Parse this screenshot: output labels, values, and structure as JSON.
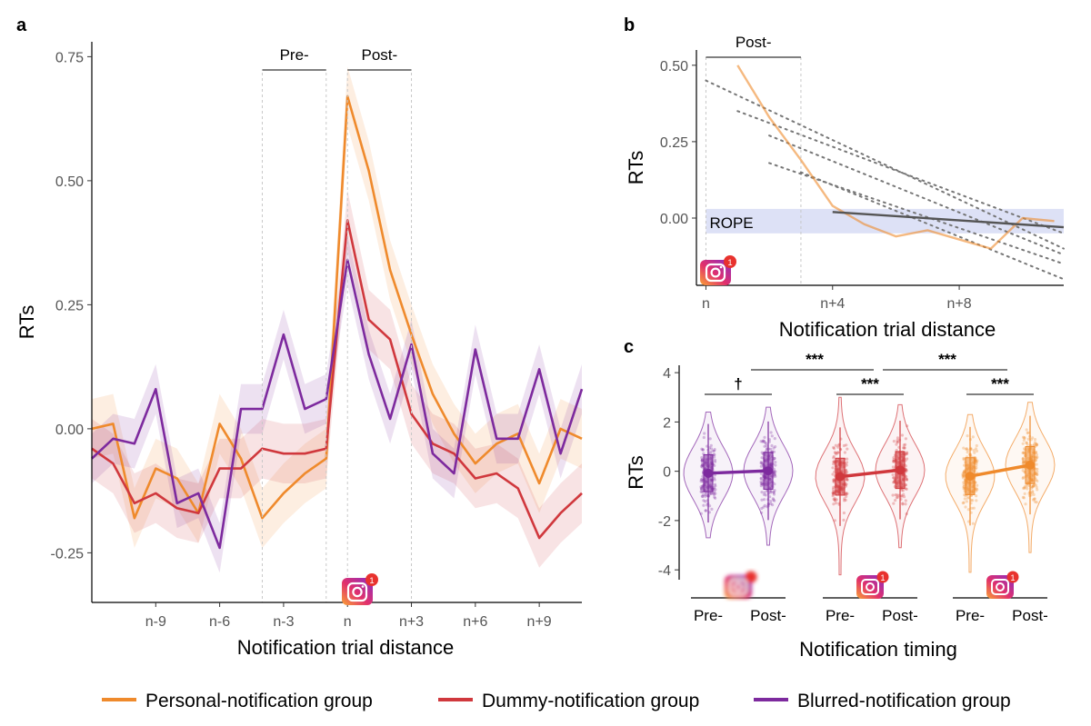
{
  "colors": {
    "personal": "#ef8a2c",
    "dummy": "#d0383d",
    "blurred": "#7d2a9e",
    "rope": "#dde1f6",
    "gray": "#777777",
    "fit": "#555555"
  },
  "legend": {
    "items": [
      {
        "label": "Personal-notification group",
        "color": "#ef8a2c"
      },
      {
        "label": "Dummy-notification group",
        "color": "#d0383d"
      },
      {
        "label": "Blurred-notification group",
        "color": "#7d2a9e"
      }
    ],
    "placement": "bottom"
  },
  "chart_data": [
    {
      "panel": "a",
      "type": "line",
      "ylabel": "RTs",
      "xlabel": "Notification trial distance",
      "xlim": [
        -12,
        11
      ],
      "ylim": [
        -0.35,
        0.78
      ],
      "xticks": [
        -9,
        -6,
        -3,
        0,
        3,
        6,
        9
      ],
      "xtick_labels": [
        "n-9",
        "n-6",
        "n-3",
        "n",
        "n+3",
        "n+6",
        "n+9"
      ],
      "yticks": [
        -0.25,
        0,
        0.25,
        0.5,
        0.75
      ],
      "ytick_labels": [
        "-0.25",
        "0.00",
        "0.25",
        "0.50",
        "0.75"
      ],
      "period_labels": {
        "pre": "Pre-",
        "post": "Post-"
      },
      "pre_window": [
        -4,
        -1
      ],
      "post_window": [
        0,
        3
      ],
      "icon": "instagram-notification-icon",
      "icon_badge": "1",
      "x": [
        -12,
        -11,
        -10,
        -9,
        -8,
        -7,
        -6,
        -5,
        -4,
        -3,
        -2,
        -1,
        0,
        1,
        2,
        3,
        4,
        5,
        6,
        7,
        8,
        9,
        10,
        11
      ],
      "series": [
        {
          "name": "Personal-notification group",
          "color": "#ef8a2c",
          "values": [
            0.0,
            0.01,
            -0.18,
            -0.08,
            -0.1,
            -0.17,
            0.01,
            -0.06,
            -0.18,
            -0.13,
            -0.09,
            -0.06,
            0.67,
            0.52,
            0.32,
            0.19,
            0.07,
            -0.01,
            -0.07,
            -0.03,
            -0.01,
            -0.11,
            0.0,
            -0.02
          ],
          "band": 0.06
        },
        {
          "name": "Dummy-notification group",
          "color": "#d0383d",
          "values": [
            -0.04,
            -0.07,
            -0.15,
            -0.13,
            -0.16,
            -0.17,
            -0.08,
            -0.08,
            -0.04,
            -0.05,
            -0.05,
            -0.04,
            0.42,
            0.22,
            0.18,
            0.03,
            -0.03,
            -0.05,
            -0.1,
            -0.09,
            -0.12,
            -0.22,
            -0.17,
            -0.13
          ],
          "band": 0.06
        },
        {
          "name": "Blurred-notification group",
          "color": "#7d2a9e",
          "values": [
            -0.06,
            -0.02,
            -0.03,
            0.08,
            -0.15,
            -0.13,
            -0.24,
            0.04,
            0.04,
            0.19,
            0.04,
            0.06,
            0.34,
            0.15,
            0.02,
            0.17,
            -0.05,
            -0.09,
            0.16,
            -0.02,
            -0.02,
            0.12,
            -0.05,
            0.08
          ],
          "band": 0.05
        }
      ]
    },
    {
      "panel": "b",
      "type": "line",
      "ylabel": "RTs",
      "xlabel": "Notification trial distance",
      "xlim": [
        -0.3,
        11.3
      ],
      "ylim": [
        -0.22,
        0.55
      ],
      "xticks": [
        0,
        4,
        8
      ],
      "xtick_labels": [
        "n",
        "n+4",
        "n+8"
      ],
      "yticks": [
        0,
        0.25,
        0.5
      ],
      "ytick_labels": [
        "0.00",
        "0.25",
        "0.50"
      ],
      "post_label": "Post-",
      "post_window": [
        0,
        3
      ],
      "rope_label": "ROPE",
      "rope": [
        -0.05,
        0.03
      ],
      "icon": "instagram-notification-icon",
      "icon_badge": "1",
      "observed": {
        "name": "Personal-notification group",
        "color": "#ef8a2c",
        "x": [
          1,
          2,
          3,
          4,
          5,
          6,
          7,
          8,
          9,
          10,
          11
        ],
        "values": [
          0.5,
          0.33,
          0.19,
          0.04,
          -0.02,
          -0.06,
          -0.04,
          -0.07,
          -0.1,
          0.0,
          -0.01
        ]
      },
      "fit_line": {
        "x": [
          4,
          11.3
        ],
        "values": [
          0.02,
          -0.03
        ]
      },
      "dotted_fits": [
        {
          "x": [
            0,
            11.3
          ],
          "values": [
            0.45,
            -0.1
          ]
        },
        {
          "x": [
            1,
            11.3
          ],
          "values": [
            0.35,
            -0.05
          ]
        },
        {
          "x": [
            2,
            11.3
          ],
          "values": [
            0.27,
            -0.12
          ]
        },
        {
          "x": [
            2,
            11.3
          ],
          "values": [
            0.18,
            -0.15
          ]
        },
        {
          "x": [
            3,
            11.3
          ],
          "values": [
            0.15,
            -0.2
          ]
        }
      ]
    },
    {
      "panel": "c",
      "type": "violin",
      "ylabel": "RTs",
      "xlabel": "Notification timing",
      "ylim": [
        -4.4,
        4.3
      ],
      "yticks": [
        -4,
        -2,
        0,
        2,
        4
      ],
      "ytick_labels": [
        "-4",
        "-2",
        "0",
        "2",
        "4"
      ],
      "groups": [
        {
          "name": "Blurred-notification group",
          "color": "#7d2a9e",
          "icon_blurred": true,
          "categories": [
            "Pre-",
            "Post-"
          ],
          "means": [
            -0.08,
            0.02
          ],
          "ranges": [
            [
              -2.7,
              2.4
            ],
            [
              -3.0,
              2.6
            ]
          ],
          "sig_label": "†"
        },
        {
          "name": "Dummy-notification group",
          "color": "#d0383d",
          "icon_blurred": false,
          "categories": [
            "Pre-",
            "Post-"
          ],
          "means": [
            -0.22,
            0.05
          ],
          "ranges": [
            [
              -4.2,
              3.0
            ],
            [
              -3.1,
              2.7
            ]
          ],
          "sig_label": "***"
        },
        {
          "name": "Personal-notification group",
          "color": "#ef8a2c",
          "icon_blurred": false,
          "categories": [
            "Pre-",
            "Post-"
          ],
          "means": [
            -0.2,
            0.25
          ],
          "ranges": [
            [
              -4.1,
              2.3
            ],
            [
              -3.3,
              2.8
            ]
          ],
          "sig_label": "***"
        }
      ],
      "between_group_sig": [
        "***",
        "***"
      ],
      "icon_badge": "1"
    }
  ],
  "panel_letters": [
    "a",
    "b",
    "c"
  ]
}
